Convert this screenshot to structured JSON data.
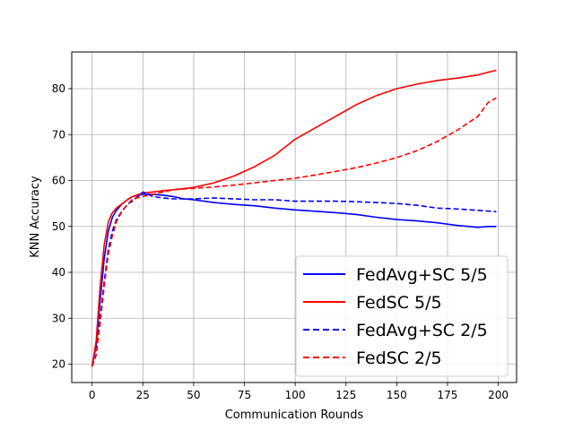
{
  "chart_data": {
    "type": "line",
    "xlabel": "Communication Rounds",
    "ylabel": "KNN Accuracy",
    "xlim": [
      -10,
      209
    ],
    "ylim": [
      16,
      88
    ],
    "xticks": [
      0,
      25,
      50,
      75,
      100,
      125,
      150,
      175,
      200
    ],
    "yticks": [
      20,
      30,
      40,
      50,
      60,
      70,
      80
    ],
    "grid": true,
    "legend_position": "lower-right",
    "series": [
      {
        "name": "FedAvg+SC 5/5",
        "color": "#0000ff",
        "style": "solid",
        "x": [
          0,
          2,
          4,
          6,
          8,
          10,
          12,
          15,
          18,
          20,
          25,
          30,
          35,
          40,
          45,
          50,
          60,
          70,
          80,
          90,
          100,
          110,
          120,
          130,
          140,
          150,
          160,
          170,
          180,
          190,
          195,
          199
        ],
        "y": [
          19.5,
          24,
          34,
          43,
          49,
          52,
          53.5,
          55,
          56,
          56.5,
          57,
          57,
          56.8,
          56.5,
          56,
          55.8,
          55.2,
          54.8,
          54.5,
          54,
          53.6,
          53.3,
          53,
          52.6,
          52,
          51.5,
          51.2,
          50.8,
          50.2,
          49.8,
          50,
          50
        ]
      },
      {
        "name": "FedSC 5/5",
        "color": "#ff0000",
        "style": "solid",
        "x": [
          0,
          2,
          4,
          6,
          8,
          10,
          12,
          15,
          18,
          20,
          25,
          30,
          35,
          40,
          50,
          60,
          70,
          80,
          90,
          100,
          110,
          120,
          130,
          140,
          150,
          160,
          170,
          180,
          190,
          195,
          199
        ],
        "y": [
          19.5,
          25,
          37,
          46,
          51,
          53,
          54,
          55,
          56,
          56.5,
          57.3,
          57.5,
          57.8,
          58,
          58.5,
          59.5,
          61,
          63,
          65.5,
          69,
          71.5,
          74,
          76.5,
          78.5,
          80,
          81,
          81.8,
          82.3,
          83,
          83.6,
          84
        ]
      },
      {
        "name": "FedAvg+SC 2/5",
        "color": "#0000ff",
        "style": "dashed",
        "x": [
          0,
          2,
          4,
          6,
          8,
          10,
          12,
          15,
          18,
          20,
          25,
          30,
          35,
          40,
          50,
          60,
          70,
          80,
          90,
          100,
          110,
          120,
          130,
          140,
          150,
          160,
          170,
          180,
          190,
          199
        ],
        "y": [
          19.5,
          22,
          30,
          38,
          45,
          49,
          51.5,
          53.5,
          55,
          55.5,
          57.5,
          56.5,
          56.2,
          56,
          56,
          56.2,
          56,
          55.8,
          55.8,
          55.5,
          55.5,
          55.5,
          55.4,
          55.2,
          55,
          54.6,
          54,
          53.8,
          53.5,
          53.2
        ]
      },
      {
        "name": "FedSC 2/5",
        "color": "#ff0000",
        "style": "dashed",
        "x": [
          0,
          2,
          4,
          6,
          8,
          10,
          12,
          15,
          18,
          20,
          25,
          30,
          35,
          40,
          50,
          60,
          70,
          80,
          90,
          100,
          110,
          120,
          130,
          140,
          150,
          160,
          170,
          180,
          190,
          195,
          199
        ],
        "y": [
          19.5,
          22,
          29,
          37,
          44,
          48,
          51,
          53.5,
          55,
          56,
          56.5,
          57,
          57.5,
          58,
          58.3,
          58.6,
          59,
          59.5,
          60,
          60.5,
          61.2,
          62,
          62.8,
          63.8,
          65,
          66.5,
          68.5,
          71,
          74,
          77,
          78
        ]
      }
    ]
  }
}
